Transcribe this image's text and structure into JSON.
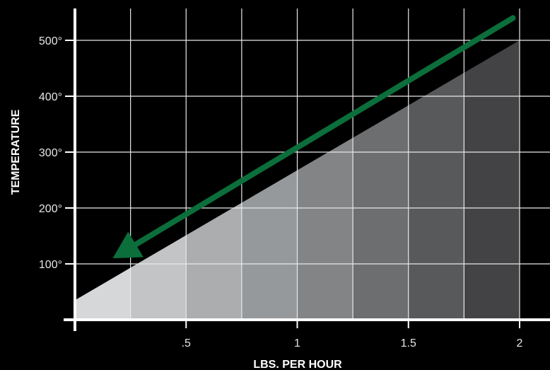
{
  "chart_data": {
    "type": "area",
    "title": "",
    "xlabel": "LBS. PER HOUR",
    "ylabel": "TEMPERATURE",
    "xlim": [
      0,
      2
    ],
    "ylim": [
      0,
      500
    ],
    "grid": true,
    "x_ticks": [
      {
        "value": 0.5,
        "label": ".5"
      },
      {
        "value": 1,
        "label": "1"
      },
      {
        "value": 1.5,
        "label": "1.5"
      },
      {
        "value": 2,
        "label": "2"
      }
    ],
    "x_gridlines": [
      0.25,
      0.5,
      0.75,
      1,
      1.25,
      1.5,
      1.75,
      2
    ],
    "y_ticks": [
      {
        "value": 100,
        "label": "100°"
      },
      {
        "value": 200,
        "label": "200°"
      },
      {
        "value": 300,
        "label": "300°"
      },
      {
        "value": 400,
        "label": "400°"
      },
      {
        "value": 500,
        "label": "500°"
      }
    ],
    "series": [
      {
        "x": [
          0,
          2
        ],
        "y": [
          35,
          500
        ]
      }
    ],
    "band_colors": [
      "#d6d7d9",
      "#c2c4c6",
      "#abadaf",
      "#96999b",
      "#828486",
      "#6c6e70",
      "#58595b",
      "#434345"
    ],
    "trend_arrow": {
      "from": [
        1.97,
        540
      ],
      "to": [
        0.17,
        110
      ],
      "color": "#0b6e3b"
    },
    "colors": {
      "background": "#000000",
      "grid": "#e8e8e8",
      "axis": "#ffffff",
      "text": "#e6e6e6"
    }
  }
}
